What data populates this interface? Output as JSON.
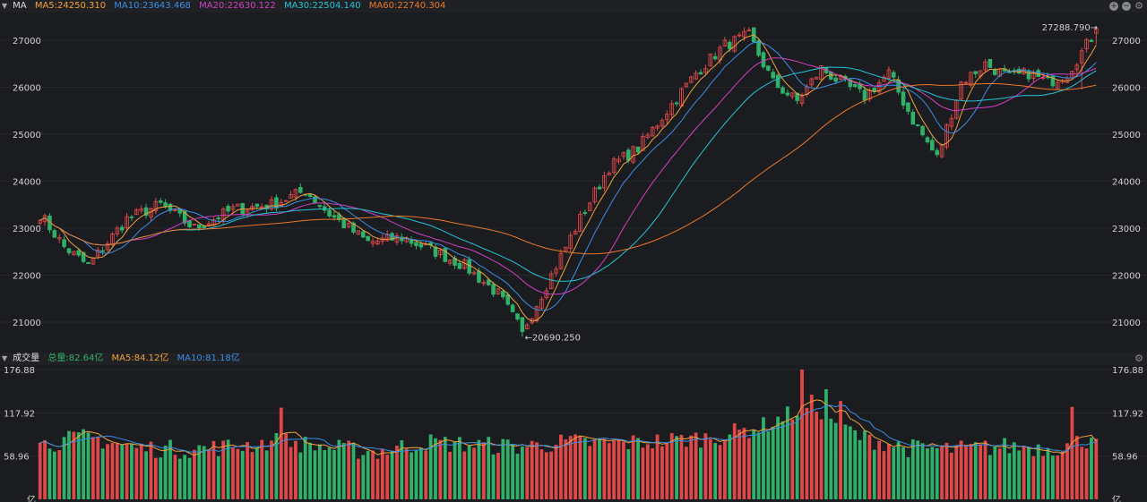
{
  "top_bar": {
    "label": "MA",
    "ma5": "MA5:24250.310",
    "ma10": "MA10:23643.468",
    "ma20": "MA20:22630.122",
    "ma30": "MA30:22504.140",
    "ma60": "MA60:22740.304"
  },
  "volume_bar": {
    "label": "成交量",
    "total": "总量:82.64亿",
    "ma5": "MA5:84.12亿",
    "ma10": "MA10:81.18亿"
  },
  "colors": {
    "up": "#e04848",
    "down": "#2fb169",
    "ma5": "#f0a23a",
    "ma10": "#3a8ee6",
    "ma20": "#d040c0",
    "ma30": "#21c4d6",
    "ma60": "#e9782a"
  },
  "icons": [
    "plus-icon",
    "minus-icon",
    "gear-icon"
  ],
  "chart_data": [
    {
      "type": "candlestick",
      "title": "MA",
      "y_ticks": [
        "27000",
        "26000",
        "25000",
        "24000",
        "23000",
        "22000",
        "21000"
      ],
      "ylim": [
        20620,
        27400
      ],
      "annotations": {
        "high": "27288.790→",
        "low": "←20690.250"
      },
      "series": [
        {
          "name": "MA5",
          "last": 24250.31
        },
        {
          "name": "MA10",
          "last": 23643.468
        },
        {
          "name": "MA20",
          "last": 22630.122
        },
        {
          "name": "MA30",
          "last": 22504.14
        },
        {
          "name": "MA60",
          "last": 22740.304
        }
      ],
      "keypoints": {
        "x": [
          0,
          5,
          10,
          18,
          25,
          32,
          40,
          48,
          55,
          60,
          68,
          75,
          82,
          88,
          95,
          100,
          106,
          112,
          118,
          124,
          130,
          136,
          142,
          147,
          152,
          157,
          162,
          166,
          171,
          176,
          181,
          186,
          191,
          196,
          201,
          205,
          209,
          213,
          219
        ],
        "close": [
          23300,
          22600,
          22200,
          23200,
          23500,
          23000,
          23400,
          23500,
          23800,
          23300,
          22700,
          22800,
          22500,
          22200,
          21600,
          20800,
          22000,
          23200,
          24300,
          24700,
          25500,
          26300,
          26900,
          27100,
          26100,
          25700,
          26400,
          26100,
          25800,
          26300,
          25300,
          24500,
          26100,
          26500,
          26200,
          26300,
          26100,
          26300,
          27200
        ]
      },
      "candle_count": 220
    },
    {
      "type": "bar",
      "title": "成交量",
      "y_ticks": [
        "176.88",
        "117.92",
        "58.96",
        "亿"
      ],
      "ylim": [
        0,
        176.88
      ],
      "series": [
        {
          "name": "总量",
          "last": 82.64
        },
        {
          "name": "MA5",
          "last": 84.12
        },
        {
          "name": "MA10",
          "last": 81.18
        }
      ],
      "keypoints": {
        "x": [
          0,
          10,
          20,
          30,
          40,
          50,
          60,
          70,
          80,
          90,
          100,
          110,
          120,
          130,
          140,
          150,
          160,
          170,
          180,
          190,
          200,
          210,
          219
        ],
        "volume": [
          75,
          85,
          70,
          68,
          72,
          80,
          70,
          65,
          78,
          74,
          72,
          78,
          76,
          80,
          85,
          100,
          130,
          85,
          70,
          68,
          72,
          70,
          84
        ]
      },
      "bar_count": 220
    }
  ]
}
